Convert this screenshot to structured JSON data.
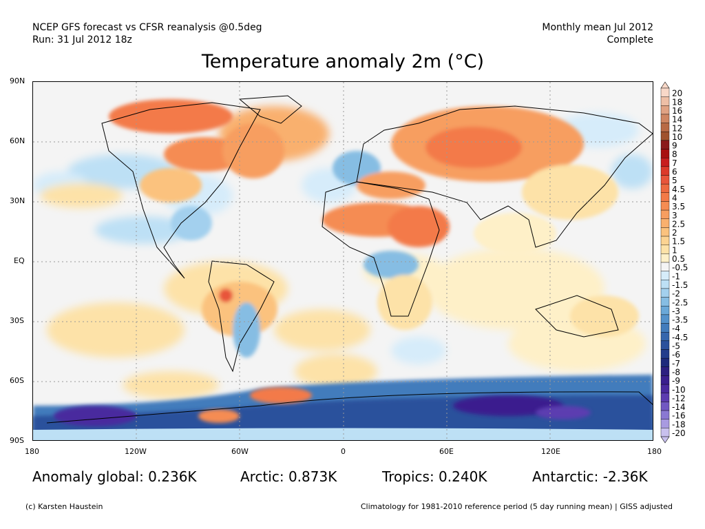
{
  "header": {
    "line1_left": "NCEP GFS forecast vs CFSR reanalysis @0.5deg",
    "line2_left": "Run: 31 Jul 2012 18z",
    "line1_right": "Monthly mean Jul 2012",
    "line2_right": "Complete"
  },
  "title": "Temperature anomaly 2m (°C)",
  "axes": {
    "lat_labels": [
      "90N",
      "60N",
      "30N",
      "EQ",
      "30S",
      "60S",
      "90S"
    ],
    "lon_labels": [
      "180",
      "120W",
      "60W",
      "0",
      "60E",
      "120E",
      "180"
    ]
  },
  "stats": {
    "global": "Anomaly global: 0.236K",
    "arctic": "Arctic: 0.873K",
    "tropics": "Tropics: 0.240K",
    "antarctic": "Antarctic: -2.36K"
  },
  "footer": {
    "left": "(c) Karsten Haustein",
    "right": "Climatology for 1981-2010 reference period (5 day running mean) | GISS adjusted"
  },
  "colorbar": {
    "levels": [
      {
        "label": "20",
        "color": "#f8d8c8"
      },
      {
        "label": "18",
        "color": "#eebfa6"
      },
      {
        "label": "16",
        "color": "#e0a283"
      },
      {
        "label": "14",
        "color": "#cf8662"
      },
      {
        "label": "12",
        "color": "#b86a45"
      },
      {
        "label": "10",
        "color": "#a0522d"
      },
      {
        "label": "9",
        "color": "#8b1a1a"
      },
      {
        "label": "8",
        "color": "#a81010"
      },
      {
        "label": "7",
        "color": "#c81e1e"
      },
      {
        "label": "6",
        "color": "#dc3a2a"
      },
      {
        "label": "5",
        "color": "#e8553a"
      },
      {
        "label": "4.5",
        "color": "#ee6a40"
      },
      {
        "label": "4",
        "color": "#f37a48"
      },
      {
        "label": "3.5",
        "color": "#f58c52"
      },
      {
        "label": "3",
        "color": "#f79e60"
      },
      {
        "label": "2.5",
        "color": "#f9b06e"
      },
      {
        "label": "2",
        "color": "#fbc27e"
      },
      {
        "label": "1.5",
        "color": "#fcd392"
      },
      {
        "label": "1",
        "color": "#fde2a8"
      },
      {
        "label": "0.5",
        "color": "#fef0c8"
      },
      {
        "label": "-0.5",
        "color": "#f4f4f4"
      },
      {
        "label": "-1",
        "color": "#d6ecfa"
      },
      {
        "label": "-1.5",
        "color": "#bde0f5"
      },
      {
        "label": "-2",
        "color": "#a3d0ee"
      },
      {
        "label": "-2.5",
        "color": "#86bde3"
      },
      {
        "label": "-3",
        "color": "#6aa8d8"
      },
      {
        "label": "-3.5",
        "color": "#5492cb"
      },
      {
        "label": "-4",
        "color": "#427cbc"
      },
      {
        "label": "-4.5",
        "color": "#3566ad"
      },
      {
        "label": "-5",
        "color": "#2b519c"
      },
      {
        "label": "-6",
        "color": "#233d8c"
      },
      {
        "label": "-7",
        "color": "#1e2a7c"
      },
      {
        "label": "-8",
        "color": "#2c1f80"
      },
      {
        "label": "-9",
        "color": "#3a1f8e"
      },
      {
        "label": "-10",
        "color": "#4a2a9e"
      },
      {
        "label": "-12",
        "color": "#5c3cb0"
      },
      {
        "label": "-14",
        "color": "#7158c2"
      },
      {
        "label": "-16",
        "color": "#8a78d2"
      },
      {
        "label": "-18",
        "color": "#a89ae0"
      },
      {
        "label": "-20",
        "color": "#c8c0ee"
      }
    ]
  }
}
